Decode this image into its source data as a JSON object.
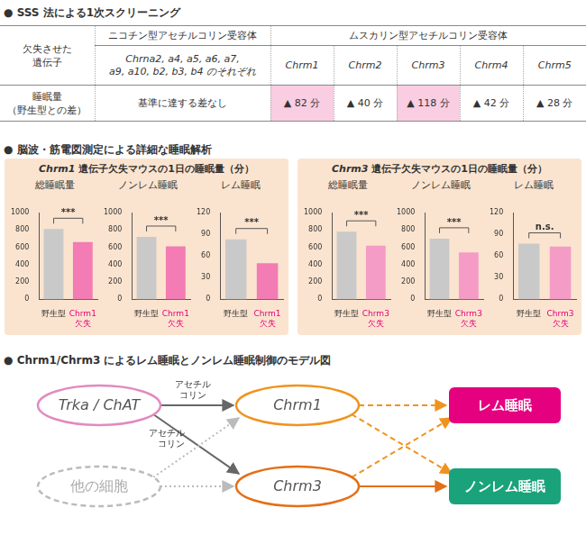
{
  "sections": [
    "● SSS 法による1次スクリーニング",
    "● 脳波・筋電図測定による詳細な睡眠解析",
    "● Chrm1/Chrm3 によるレム睡眠とノンレム睡眠制御のモデル図"
  ],
  "screening_table": {
    "row_header": [
      "欠失させた",
      "遺伝子"
    ],
    "result_label": [
      "睡眠量",
      "（野生型との差）"
    ],
    "groups": [
      {
        "label": "ニコチン型アセチルコリン受容体",
        "genes": [
          [
            "Chrna2, a4, a5, a6, a7,",
            "a9, a10, b2, b3, b4 のそれぞれ"
          ]
        ],
        "results": [
          "基準に達する差なし"
        ]
      },
      {
        "label": "ムスカリン型アセチルコリン受容体",
        "genes": [
          [
            "Chrm1"
          ],
          [
            "Chrm2"
          ],
          [
            "Chrm3"
          ],
          [
            "Chrm4"
          ],
          [
            "Chrm5"
          ]
        ],
        "results": [
          "▲ 82 分",
          "▲ 40 分",
          "▲ 118 分",
          "▲ 42 分",
          "▲ 28 分"
        ]
      }
    ],
    "highlighted": [
      "Chrm1",
      "Chrm3"
    ],
    "color": "#f9cde2"
  },
  "sleep_panels": [
    {
      "title": "Chrm1 遺伝子欠失マウスの1日の睡眠量（分）",
      "color": "#fbe4cf"
    },
    {
      "title": "Chrm3 遺伝子欠失マウスの1日の睡眠量（分）",
      "color": "#fbe4cf"
    }
  ],
  "chart_data": [
    {
      "type": "bar",
      "title": "総睡眠量",
      "categories": [
        "野生型",
        "Chrm1 欠失"
      ],
      "values": [
        810,
        660
      ],
      "colors": [
        "#c9c9c9",
        "#f27cb3"
      ],
      "ylim": [
        0,
        1000
      ],
      "yticks": [
        0,
        200,
        400,
        600,
        800,
        1000
      ],
      "grid": false,
      "significance": "***"
    },
    {
      "type": "bar",
      "title": "ノンレム睡眠",
      "categories": [
        "野生型",
        "Chrm1 欠失"
      ],
      "values": [
        720,
        610
      ],
      "colors": [
        "#c9c9c9",
        "#f27cb3"
      ],
      "ylim": [
        0,
        1000
      ],
      "yticks": [
        0,
        200,
        400,
        600,
        800,
        1000
      ],
      "grid": false,
      "significance": "***"
    },
    {
      "type": "bar",
      "title": "レム睡眠",
      "categories": [
        "野生型",
        "Chrm1 欠失"
      ],
      "values": [
        83,
        50
      ],
      "colors": [
        "#c9c9c9",
        "#f27cb3"
      ],
      "ylim": [
        0,
        120
      ],
      "yticks": [
        0,
        30,
        60,
        90,
        120
      ],
      "grid": false,
      "significance": "***"
    },
    {
      "type": "bar",
      "title": "総睡眠量",
      "categories": [
        "野生型",
        "Chrm3 欠失"
      ],
      "values": [
        780,
        620
      ],
      "colors": [
        "#c9c9c9",
        "#f49cc6"
      ],
      "ylim": [
        0,
        1000
      ],
      "yticks": [
        0,
        200,
        400,
        600,
        800,
        1000
      ],
      "grid": false,
      "significance": "***"
    },
    {
      "type": "bar",
      "title": "ノンレム睡眠",
      "categories": [
        "野生型",
        "Chrm3 欠失"
      ],
      "values": [
        700,
        540
      ],
      "colors": [
        "#c9c9c9",
        "#f49cc6"
      ],
      "ylim": [
        0,
        1000
      ],
      "yticks": [
        0,
        200,
        400,
        600,
        800,
        1000
      ],
      "grid": false,
      "significance": "***"
    },
    {
      "type": "bar",
      "title": "レム睡眠",
      "categories": [
        "野生型",
        "Chrm3 欠失"
      ],
      "values": [
        77,
        73
      ],
      "colors": [
        "#c9c9c9",
        "#f49cc6"
      ],
      "ylim": [
        0,
        120
      ],
      "yticks": [
        0,
        30,
        60,
        90,
        120
      ],
      "grid": false,
      "significance": "n.s."
    }
  ],
  "diagram": {
    "nodes": [
      {
        "label": "Trka / ChAT",
        "shape": "ellipse",
        "color": "#e28ac0",
        "line_style": "solid"
      },
      {
        "label": "他の細胞",
        "shape": "ellipse",
        "color": "#bbbbbb",
        "line_style": "dashed"
      },
      {
        "label": "Chrm1",
        "shape": "ellipse",
        "color": "#f0931e",
        "line_style": "solid"
      },
      {
        "label": "Chrm3",
        "shape": "ellipse",
        "color": "#e36f17",
        "line_style": "solid"
      },
      {
        "label": "レム睡眠",
        "shape": "box",
        "color": "#e4007f",
        "line_style": "solid"
      },
      {
        "label": "ノンレム睡眠",
        "shape": "box",
        "color": "#1aa37a",
        "line_style": "solid"
      }
    ],
    "edges": [
      {
        "from": 0,
        "to": 2,
        "color": "#666666",
        "line_style": "solid",
        "label": [
          "アセチル",
          "コリン"
        ]
      },
      {
        "from": 0,
        "to": 3,
        "color": "#666666",
        "line_style": "solid",
        "label": [
          "アセチル",
          "コリン"
        ]
      },
      {
        "from": 1,
        "to": 2,
        "color": "#bbbbbb",
        "line_style": "dotted"
      },
      {
        "from": 1,
        "to": 3,
        "color": "#bbbbbb",
        "line_style": "dotted"
      },
      {
        "from": 2,
        "to": 4,
        "color": "#f0931e",
        "line_style": "dashed"
      },
      {
        "from": 2,
        "to": 5,
        "color": "#f0931e",
        "line_style": "dashed"
      },
      {
        "from": 3,
        "to": 4,
        "color": "#f0931e",
        "line_style": "dashed"
      },
      {
        "from": 3,
        "to": 5,
        "color": "#e36f17",
        "line_style": "solid"
      }
    ]
  }
}
